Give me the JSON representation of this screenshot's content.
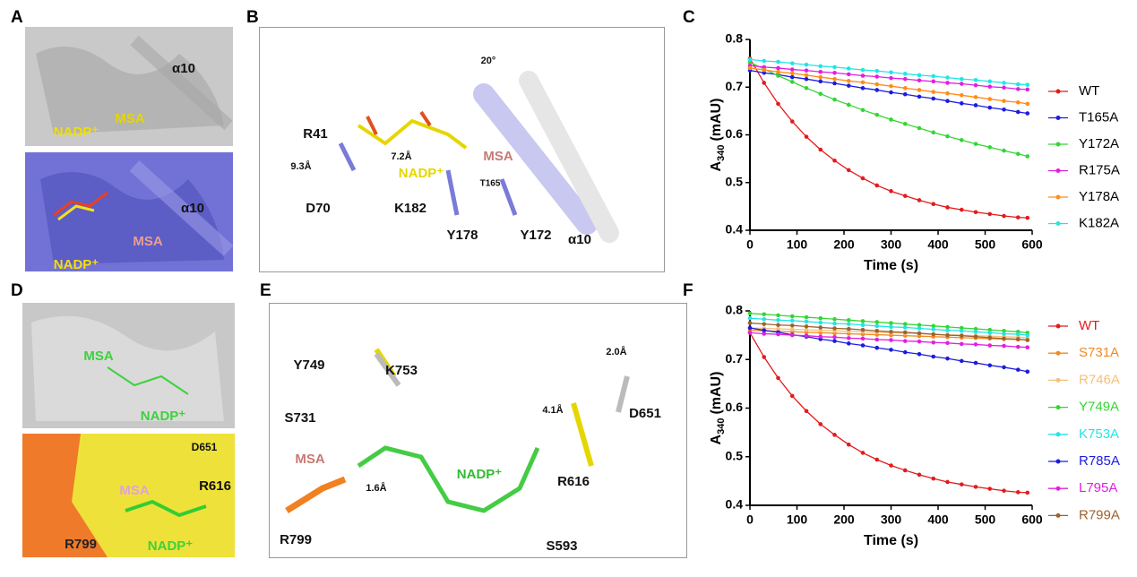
{
  "panels": [
    {
      "letter": "A",
      "texts": [
        "α10",
        "NADP⁺",
        "MSA",
        "α10",
        "MSA",
        "NADP⁺"
      ]
    },
    {
      "letter": "B",
      "texts": [
        "20°",
        "R41",
        "7.2Å",
        "9.3Å",
        "NADP⁺",
        "MSA",
        "T165",
        "D70",
        "K182",
        "Y178",
        "Y172",
        "α10"
      ]
    },
    {
      "letter": "C",
      "texts": []
    },
    {
      "letter": "D",
      "texts": [
        "MSA",
        "NADP⁺",
        "D651",
        "R616",
        "MSA",
        "R799",
        "NADP⁺"
      ]
    },
    {
      "letter": "E",
      "texts": [
        "Y749",
        "K753",
        "S731",
        "MSA",
        "1.6Å",
        "NADP⁺",
        "2.0Å",
        "4.1Å",
        "D651",
        "R616",
        "R799",
        "S593"
      ]
    },
    {
      "letter": "F",
      "texts": []
    }
  ],
  "chart_data": [
    {
      "type": "line",
      "xlabel": "Time (s)",
      "ylabel": "A",
      "ylabel_sub": "340",
      "ylabel_unit": "(mAU)",
      "xlim": [
        0,
        600
      ],
      "xticks": [
        0,
        100,
        200,
        300,
        400,
        500,
        600
      ],
      "ylim": [
        0.4,
        0.8
      ],
      "yticks": [
        0.4,
        0.5,
        0.6,
        0.7,
        0.8
      ],
      "legend": "right",
      "legend_text_colored": false,
      "x": [
        0,
        30,
        60,
        90,
        120,
        150,
        180,
        210,
        240,
        270,
        300,
        330,
        360,
        390,
        420,
        450,
        480,
        510,
        540,
        570,
        590
      ],
      "series": [
        {
          "name": "WT",
          "color": "#e41a1c",
          "values": [
            0.76,
            0.709,
            0.665,
            0.628,
            0.596,
            0.569,
            0.546,
            0.526,
            0.509,
            0.494,
            0.482,
            0.472,
            0.463,
            0.455,
            0.448,
            0.443,
            0.438,
            0.434,
            0.43,
            0.427,
            0.426
          ]
        },
        {
          "name": "T165A",
          "color": "#1c1ce0",
          "values": [
            0.735,
            0.73,
            0.726,
            0.721,
            0.717,
            0.712,
            0.708,
            0.703,
            0.698,
            0.694,
            0.689,
            0.685,
            0.68,
            0.676,
            0.671,
            0.666,
            0.662,
            0.657,
            0.653,
            0.648,
            0.645
          ]
        },
        {
          "name": "Y172A",
          "color": "#33d633",
          "values": [
            0.752,
            0.738,
            0.724,
            0.711,
            0.698,
            0.686,
            0.674,
            0.663,
            0.652,
            0.642,
            0.632,
            0.623,
            0.614,
            0.605,
            0.597,
            0.589,
            0.581,
            0.574,
            0.567,
            0.56,
            0.555
          ]
        },
        {
          "name": "R175A",
          "color": "#e020e0",
          "values": [
            0.745,
            0.742,
            0.74,
            0.737,
            0.735,
            0.732,
            0.73,
            0.727,
            0.724,
            0.722,
            0.719,
            0.717,
            0.714,
            0.712,
            0.709,
            0.707,
            0.704,
            0.701,
            0.699,
            0.696,
            0.695
          ]
        },
        {
          "name": "Y178A",
          "color": "#ff8c1a",
          "values": [
            0.74,
            0.736,
            0.732,
            0.729,
            0.725,
            0.721,
            0.717,
            0.713,
            0.71,
            0.706,
            0.702,
            0.698,
            0.694,
            0.69,
            0.687,
            0.683,
            0.679,
            0.675,
            0.671,
            0.668,
            0.665
          ]
        },
        {
          "name": "K182A",
          "color": "#22e5e5",
          "values": [
            0.758,
            0.755,
            0.753,
            0.75,
            0.747,
            0.744,
            0.742,
            0.739,
            0.736,
            0.734,
            0.731,
            0.728,
            0.725,
            0.723,
            0.72,
            0.717,
            0.715,
            0.712,
            0.709,
            0.706,
            0.705
          ]
        }
      ]
    },
    {
      "type": "line",
      "xlabel": "Time (s)",
      "ylabel": "A",
      "ylabel_sub": "340",
      "ylabel_unit": "(mAU)",
      "xlim": [
        0,
        600
      ],
      "xticks": [
        0,
        100,
        200,
        300,
        400,
        500,
        600
      ],
      "ylim": [
        0.4,
        0.8
      ],
      "yticks": [
        0.4,
        0.5,
        0.6,
        0.7,
        0.8
      ],
      "legend": "right",
      "legend_text_colored": true,
      "x": [
        0,
        30,
        60,
        90,
        120,
        150,
        180,
        210,
        240,
        270,
        300,
        330,
        360,
        390,
        420,
        450,
        480,
        510,
        540,
        570,
        590
      ],
      "series": [
        {
          "name": "WT",
          "color": "#e41a1c",
          "values": [
            0.755,
            0.705,
            0.662,
            0.625,
            0.594,
            0.567,
            0.545,
            0.525,
            0.508,
            0.494,
            0.482,
            0.472,
            0.463,
            0.455,
            0.448,
            0.443,
            0.438,
            0.434,
            0.43,
            0.427,
            0.426
          ]
        },
        {
          "name": "S731A",
          "color": "#f08a24",
          "values": [
            0.76,
            0.759,
            0.758,
            0.757,
            0.756,
            0.755,
            0.754,
            0.753,
            0.752,
            0.751,
            0.75,
            0.749,
            0.748,
            0.747,
            0.746,
            0.745,
            0.744,
            0.743,
            0.742,
            0.741,
            0.74
          ]
        },
        {
          "name": "R746A",
          "color": "#f5c07a",
          "values": [
            0.765,
            0.764,
            0.763,
            0.762,
            0.761,
            0.76,
            0.759,
            0.758,
            0.757,
            0.756,
            0.755,
            0.754,
            0.753,
            0.752,
            0.751,
            0.75,
            0.749,
            0.748,
            0.747,
            0.746,
            0.745
          ]
        },
        {
          "name": "Y749A",
          "color": "#33d633",
          "values": [
            0.795,
            0.793,
            0.791,
            0.789,
            0.787,
            0.785,
            0.783,
            0.781,
            0.779,
            0.777,
            0.775,
            0.773,
            0.771,
            0.769,
            0.767,
            0.765,
            0.763,
            0.761,
            0.759,
            0.757,
            0.755
          ]
        },
        {
          "name": "K753A",
          "color": "#22e5e5",
          "values": [
            0.785,
            0.783,
            0.781,
            0.78,
            0.778,
            0.776,
            0.774,
            0.773,
            0.771,
            0.769,
            0.767,
            0.766,
            0.764,
            0.762,
            0.76,
            0.759,
            0.757,
            0.755,
            0.753,
            0.752,
            0.75
          ]
        },
        {
          "name": "R785A",
          "color": "#1c1ce0",
          "values": [
            0.765,
            0.76,
            0.756,
            0.751,
            0.747,
            0.742,
            0.738,
            0.733,
            0.729,
            0.724,
            0.72,
            0.715,
            0.711,
            0.706,
            0.702,
            0.697,
            0.693,
            0.688,
            0.684,
            0.679,
            0.675
          ]
        },
        {
          "name": "L795A",
          "color": "#e020e0",
          "values": [
            0.755,
            0.753,
            0.752,
            0.75,
            0.749,
            0.747,
            0.746,
            0.744,
            0.743,
            0.741,
            0.74,
            0.738,
            0.737,
            0.735,
            0.734,
            0.732,
            0.731,
            0.729,
            0.728,
            0.726,
            0.725
          ]
        },
        {
          "name": "R799A",
          "color": "#a0622d",
          "values": [
            0.775,
            0.773,
            0.771,
            0.77,
            0.768,
            0.766,
            0.764,
            0.763,
            0.761,
            0.759,
            0.757,
            0.756,
            0.754,
            0.752,
            0.75,
            0.749,
            0.747,
            0.745,
            0.743,
            0.742,
            0.74
          ]
        }
      ]
    }
  ]
}
